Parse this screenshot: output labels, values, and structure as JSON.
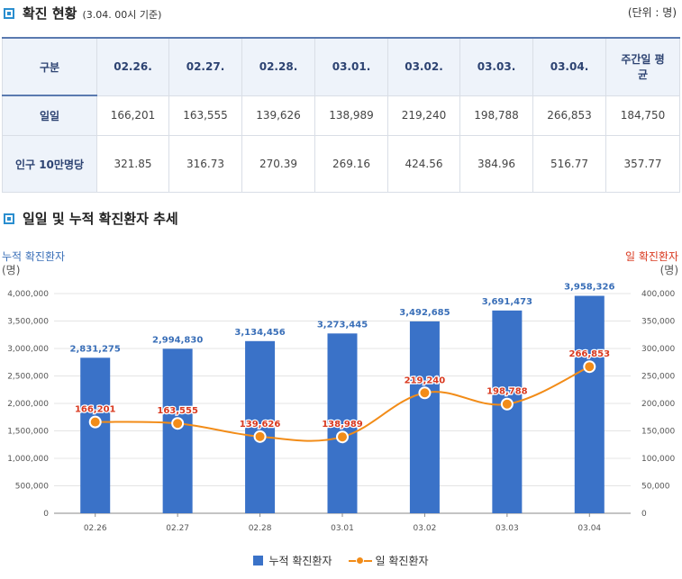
{
  "section1": {
    "title": "확진 현황",
    "note": "(3.04. 00시 기준)",
    "unit": "(단위 : 명)"
  },
  "table": {
    "corner": "구분",
    "columns": [
      "02.26.",
      "02.27.",
      "02.28.",
      "03.01.",
      "03.02.",
      "03.03.",
      "03.04.",
      "주간일 평균"
    ],
    "rows": [
      {
        "label": "일일",
        "values": [
          "166,201",
          "163,555",
          "139,626",
          "138,989",
          "219,240",
          "198,788",
          "266,853",
          "184,750"
        ]
      },
      {
        "label": "인구 10만명당",
        "values": [
          "321.85",
          "316.73",
          "270.39",
          "269.16",
          "424.56",
          "384.96",
          "516.77",
          "357.77"
        ]
      }
    ]
  },
  "section2": {
    "title": "일일 및 누적 확진환자 추세"
  },
  "chart_data": {
    "type": "bar",
    "categories": [
      "02.26",
      "02.27",
      "02.28",
      "03.01",
      "03.02",
      "03.03",
      "03.04"
    ],
    "series": [
      {
        "name": "누적 확진환자",
        "type": "bar",
        "axis": "left",
        "values": [
          2831275,
          2994830,
          3134456,
          3273445,
          3492685,
          3691473,
          3958326
        ],
        "labels": [
          "2,831,275",
          "2,994,830",
          "3,134,456",
          "3,273,445",
          "3,492,685",
          "3,691,473",
          "3,958,326"
        ]
      },
      {
        "name": "일 확진환자",
        "type": "line",
        "axis": "right",
        "values": [
          166201,
          163555,
          139626,
          138989,
          219240,
          198788,
          266853
        ],
        "labels": [
          "166,201",
          "163,555",
          "139,626",
          "138,989",
          "219,240",
          "198,788",
          "266,853"
        ]
      }
    ],
    "left_axis": {
      "label": "누적 확진환자",
      "unit": "(명)",
      "ylim": [
        0,
        4000000
      ],
      "ticks": [
        "0",
        "500,000",
        "1,000,000",
        "1,500,000",
        "2,000,000",
        "2,500,000",
        "3,000,000",
        "3,500,000",
        "4,000,000"
      ]
    },
    "right_axis": {
      "label": "일 확진환자",
      "unit": "(명)",
      "ylim": [
        0,
        400000
      ],
      "ticks": [
        "0",
        "50,000",
        "100,000",
        "150,000",
        "200,000",
        "250,000",
        "300,000",
        "350,000",
        "400,000"
      ]
    },
    "grid": true,
    "legend_position": "bottom",
    "colors": {
      "bar": "#3a72c8",
      "line": "#f28c18",
      "bar_label": "#3a6fb8",
      "line_label": "#d9391f",
      "left_axis_title": "#3a6fb8",
      "right_axis_title": "#d9391f"
    }
  }
}
